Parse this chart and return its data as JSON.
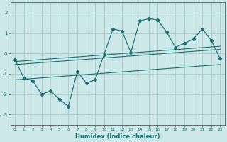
{
  "xlabel": "Humidex (Indice chaleur)",
  "bg_color": "#cce8e8",
  "grid_color": "#aacccc",
  "line_color": "#1a7070",
  "x": [
    0,
    1,
    2,
    3,
    4,
    5,
    6,
    7,
    8,
    9,
    10,
    11,
    12,
    13,
    14,
    15,
    16,
    17,
    18,
    19,
    20,
    21,
    22,
    23
  ],
  "y_main": [
    -0.3,
    -1.2,
    -1.35,
    -2.0,
    -1.85,
    -2.25,
    -2.6,
    -0.9,
    -1.45,
    -1.3,
    -0.05,
    1.2,
    1.1,
    0.05,
    1.6,
    1.7,
    1.65,
    1.05,
    0.3,
    0.5,
    0.7,
    1.2,
    0.65,
    -0.25
  ],
  "line1_x": [
    0,
    23
  ],
  "line1_y": [
    -0.4,
    0.35
  ],
  "line2_x": [
    0,
    23
  ],
  "line2_y": [
    -0.55,
    0.2
  ],
  "line3_x": [
    0,
    23
  ],
  "line3_y": [
    -1.3,
    -0.55
  ],
  "ylim": [
    -3.5,
    2.5
  ],
  "yticks": [
    -3,
    -2,
    -1,
    0,
    1,
    2
  ],
  "xticks": [
    0,
    1,
    2,
    3,
    4,
    5,
    6,
    7,
    8,
    9,
    10,
    11,
    12,
    13,
    14,
    15,
    16,
    17,
    18,
    19,
    20,
    21,
    22,
    23
  ],
  "xlim": [
    -0.5,
    23.5
  ]
}
